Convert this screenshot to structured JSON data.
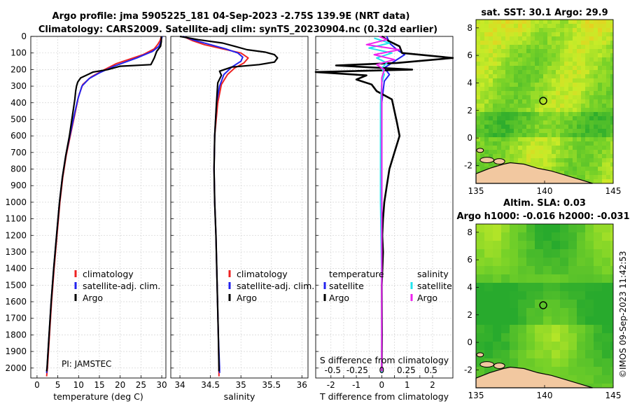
{
  "header": {
    "line1": "Argo profile: jma 5905225_181 04-Sep-2023 -2.75S 139.9E (NRT data)",
    "line2": "Climatology: CARS2009. Satellite-adj clim: synTS_20230904.nc (0.32d earlier)"
  },
  "colors": {
    "climatology": "#ee2222",
    "satellite": "#2222ee",
    "argo": "#000000",
    "sat_sal": "#22e4ee",
    "argo_sal": "#ee22ee"
  },
  "chart_data": [
    {
      "type": "line",
      "id": "temperature-profile",
      "xlabel": "temperature (deg C)",
      "ylabel": "",
      "xlim": [
        -1.5,
        31
      ],
      "ylim": [
        2060,
        0
      ],
      "xticks": [
        0,
        5,
        10,
        15,
        20,
        25,
        30
      ],
      "yticks": [
        0,
        100,
        200,
        300,
        400,
        500,
        600,
        700,
        800,
        900,
        1000,
        1100,
        1200,
        1300,
        1400,
        1500,
        1600,
        1700,
        1800,
        1900,
        2000
      ],
      "legend": [
        "climatology",
        "satellite-adj. clim.",
        "Argo"
      ],
      "annotation": "PI: JAMSTEC",
      "series": [
        {
          "name": "climatology",
          "points": [
            [
              29.9,
              0
            ],
            [
              29.6,
              25
            ],
            [
              29.0,
              50
            ],
            [
              28.2,
              75
            ],
            [
              25.5,
              110
            ],
            [
              19,
              165
            ],
            [
              15.5,
              210
            ],
            [
              13,
              245
            ],
            [
              11,
              290
            ],
            [
              10,
              360
            ],
            [
              9.0,
              480
            ],
            [
              8.0,
              600
            ],
            [
              7.0,
              720
            ],
            [
              6.2,
              850
            ],
            [
              5.5,
              1000
            ],
            [
              4.8,
              1200
            ],
            [
              4.1,
              1400
            ],
            [
              3.5,
              1600
            ],
            [
              3.0,
              1800
            ],
            [
              2.5,
              2000
            ],
            [
              2.3,
              2050
            ]
          ]
        },
        {
          "name": "satellite-adj. clim.",
          "points": [
            [
              30.1,
              0
            ],
            [
              29.8,
              30
            ],
            [
              29.3,
              60
            ],
            [
              27.8,
              90
            ],
            [
              24,
              130
            ],
            [
              18.5,
              180
            ],
            [
              15,
              220
            ],
            [
              12.5,
              255
            ],
            [
              10.8,
              300
            ],
            [
              9.8,
              380
            ],
            [
              8.9,
              480
            ],
            [
              7.9,
              600
            ],
            [
              6.9,
              720
            ],
            [
              6.1,
              850
            ],
            [
              5.4,
              1000
            ],
            [
              4.7,
              1200
            ],
            [
              4.0,
              1400
            ],
            [
              3.4,
              1600
            ],
            [
              2.9,
              1800
            ],
            [
              2.4,
              2000
            ],
            [
              2.3,
              2030
            ]
          ]
        },
        {
          "name": "Argo",
          "points": [
            [
              29.9,
              0
            ],
            [
              29.9,
              30
            ],
            [
              29.7,
              60
            ],
            [
              28.8,
              90
            ],
            [
              28.2,
              130
            ],
            [
              27.4,
              170
            ],
            [
              20,
              180
            ],
            [
              17,
              200
            ],
            [
              13.5,
              215
            ],
            [
              10.5,
              250
            ],
            [
              9.8,
              275
            ],
            [
              9.5,
              300
            ],
            [
              9.3,
              330
            ],
            [
              9.1,
              380
            ],
            [
              8.5,
              480
            ],
            [
              7.8,
              600
            ],
            [
              6.9,
              720
            ],
            [
              6.1,
              850
            ],
            [
              5.4,
              1000
            ],
            [
              4.7,
              1200
            ],
            [
              4.0,
              1400
            ],
            [
              3.4,
              1600
            ],
            [
              2.9,
              1800
            ],
            [
              2.4,
              2000
            ],
            [
              2.3,
              2020
            ]
          ]
        }
      ]
    },
    {
      "type": "line",
      "id": "salinity-profile",
      "xlabel": "salinity",
      "xlim": [
        33.85,
        36.1
      ],
      "ylim": [
        2060,
        0
      ],
      "xticks": [
        34,
        34.5,
        35,
        35.5,
        36
      ],
      "legend": [
        "climatology",
        "satellite-adj. clim.",
        "Argo"
      ],
      "series": [
        {
          "name": "climatology",
          "points": [
            [
              34.05,
              0
            ],
            [
              34.2,
              25
            ],
            [
              34.4,
              50
            ],
            [
              34.7,
              75
            ],
            [
              35.0,
              100
            ],
            [
              35.12,
              130
            ],
            [
              35.05,
              160
            ],
            [
              34.9,
              190
            ],
            [
              34.78,
              230
            ],
            [
              34.68,
              290
            ],
            [
              34.62,
              400
            ],
            [
              34.57,
              600
            ],
            [
              34.56,
              800
            ],
            [
              34.57,
              1000
            ],
            [
              34.59,
              1200
            ],
            [
              34.61,
              1500
            ],
            [
              34.63,
              1800
            ],
            [
              34.64,
              2000
            ],
            [
              34.64,
              2050
            ]
          ]
        },
        {
          "name": "satellite-adj. clim.",
          "points": [
            [
              34.05,
              0
            ],
            [
              34.25,
              25
            ],
            [
              34.5,
              50
            ],
            [
              34.75,
              75
            ],
            [
              34.95,
              100
            ],
            [
              35.03,
              125
            ],
            [
              35.0,
              150
            ],
            [
              34.85,
              185
            ],
            [
              34.72,
              230
            ],
            [
              34.65,
              300
            ],
            [
              34.6,
              400
            ],
            [
              34.57,
              600
            ],
            [
              34.56,
              800
            ],
            [
              34.57,
              1000
            ],
            [
              34.59,
              1200
            ],
            [
              34.61,
              1500
            ],
            [
              34.63,
              1800
            ],
            [
              34.65,
              2000
            ],
            [
              34.65,
              2030
            ]
          ]
        },
        {
          "name": "Argo",
          "points": [
            [
              34.0,
              0
            ],
            [
              34.3,
              20
            ],
            [
              34.7,
              40
            ],
            [
              34.9,
              60
            ],
            [
              35.1,
              80
            ],
            [
              35.4,
              95
            ],
            [
              35.55,
              110
            ],
            [
              35.6,
              130
            ],
            [
              35.55,
              155
            ],
            [
              35.3,
              170
            ],
            [
              34.85,
              185
            ],
            [
              34.65,
              210
            ],
            [
              34.68,
              235
            ],
            [
              34.62,
              280
            ],
            [
              34.6,
              400
            ],
            [
              34.57,
              600
            ],
            [
              34.56,
              800
            ],
            [
              34.57,
              1000
            ],
            [
              34.59,
              1200
            ],
            [
              34.61,
              1500
            ],
            [
              34.63,
              1800
            ],
            [
              34.64,
              2000
            ],
            [
              34.64,
              2020
            ]
          ]
        }
      ]
    },
    {
      "type": "line",
      "id": "difference-profile",
      "xlabel": "T difference from climatology",
      "xlabel2": "S difference from climatology",
      "xlim": [
        -2.6,
        2.8
      ],
      "ylim": [
        2060,
        0
      ],
      "xticks": [
        -2,
        -1.5,
        -1,
        -0.5,
        0,
        0.5,
        1,
        1.5,
        2
      ],
      "xticklabels": [
        "-2",
        "",
        "-1",
        "",
        "0",
        "",
        "1",
        "",
        "2"
      ],
      "s_ticks": [
        -0.5,
        -0.25,
        0,
        0.25,
        0.5
      ],
      "s_ticklabels": [
        "-0.5",
        "-0.25",
        "0",
        "0.25",
        "0.5"
      ],
      "legend_temperature_title": "temperature",
      "legend_salinity_title": "salinity",
      "legend_temperature": [
        "satellite",
        "Argo"
      ],
      "legend_salinity": [
        "satellite",
        "Argo"
      ],
      "series": [
        {
          "name": "temperature satellite",
          "points": [
            [
              0.2,
              0
            ],
            [
              0.3,
              40
            ],
            [
              0.6,
              80
            ],
            [
              0.9,
              110
            ],
            [
              0.5,
              150
            ],
            [
              0.1,
              190
            ],
            [
              0.3,
              230
            ],
            [
              0.1,
              270
            ],
            [
              0.0,
              400
            ],
            [
              0.0,
              1000
            ],
            [
              0.0,
              2030
            ]
          ]
        },
        {
          "name": "temperature Argo",
          "points": [
            [
              0,
              0
            ],
            [
              0.3,
              30
            ],
            [
              0.7,
              60
            ],
            [
              0.8,
              100
            ],
            [
              2.8,
              130
            ],
            [
              0.6,
              160
            ],
            [
              -1.8,
              175
            ],
            [
              1.2,
              200
            ],
            [
              -2.6,
              215
            ],
            [
              -0.6,
              235
            ],
            [
              -1.0,
              260
            ],
            [
              -0.4,
              290
            ],
            [
              -0.2,
              330
            ],
            [
              0.4,
              380
            ],
            [
              0.5,
              450
            ],
            [
              0.6,
              520
            ],
            [
              0.7,
              600
            ],
            [
              0.5,
              700
            ],
            [
              0.3,
              800
            ],
            [
              0.2,
              900
            ],
            [
              0.1,
              1000
            ],
            [
              0.05,
              1100
            ],
            [
              0.02,
              1200
            ],
            [
              0.05,
              1300
            ],
            [
              0.0,
              1500
            ],
            [
              0.01,
              1800
            ],
            [
              0.0,
              2020
            ]
          ]
        },
        {
          "name": "salinity satellite",
          "points": [
            [
              -0.3,
              10
            ],
            [
              0.3,
              40
            ],
            [
              -0.5,
              70
            ],
            [
              0.4,
              100
            ],
            [
              -0.2,
              130
            ],
            [
              0.2,
              160
            ],
            [
              0.0,
              190
            ],
            [
              0.1,
              230
            ],
            [
              0.0,
              280
            ],
            [
              -0.05,
              400
            ],
            [
              -0.05,
              1000
            ],
            [
              0.0,
              1500
            ],
            [
              0.0,
              2030
            ]
          ]
        },
        {
          "name": "salinity Argo",
          "points": [
            [
              -0.1,
              0
            ],
            [
              0.2,
              20
            ],
            [
              -0.6,
              50
            ],
            [
              0.7,
              80
            ],
            [
              -0.3,
              110
            ],
            [
              0.5,
              140
            ],
            [
              -0.2,
              170
            ],
            [
              0.1,
              200
            ],
            [
              0.0,
              250
            ],
            [
              0.0,
              400
            ],
            [
              0.0,
              1000
            ],
            [
              0.0,
              2020
            ]
          ]
        }
      ]
    },
    {
      "type": "heatmap",
      "id": "sst-map",
      "title": "sat. SST: 30.1 Argo: 29.9",
      "xlim": [
        135,
        145
      ],
      "ylim": [
        -3.3,
        8.6
      ],
      "xticks": [
        135,
        140,
        145
      ],
      "yticks": [
        -2,
        0,
        2,
        4,
        6,
        8
      ],
      "marker": [
        139.9,
        2.7
      ]
    },
    {
      "type": "heatmap",
      "id": "sla-map",
      "title": "Altim. SLA: 0.03",
      "subtitle": "Argo h1000: -0.016 h2000: -0.031",
      "xlim": [
        135,
        145
      ],
      "ylim": [
        -3.3,
        8.6
      ],
      "xticks": [
        135,
        140,
        145
      ],
      "yticks": [
        -2,
        0,
        2,
        4,
        6,
        8
      ],
      "marker": [
        139.9,
        2.7
      ]
    }
  ],
  "footer": {
    "stamp": "©IMOS 09-Sep-2023 11:42:53"
  }
}
